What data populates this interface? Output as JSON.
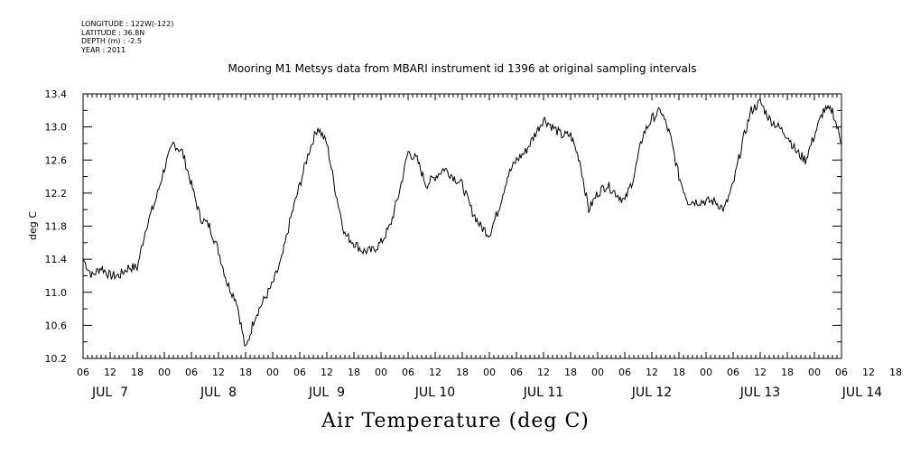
{
  "meta": {
    "longitude": "LONGITUDE : 122W(-122)",
    "latitude": "LATITUDE : 36.8N",
    "depth": "DEPTH (m) : -2.5",
    "year": "YEAR : 2011"
  },
  "chart_data": {
    "type": "line",
    "title": "Mooring M1 Metsys data from MBARI instrument id 1396 at original sampling intervals",
    "ylabel": "deg C",
    "xlabel": "Air Temperature (deg C)",
    "ylim": [
      10.2,
      13.4
    ],
    "yticks": [
      "10.2",
      "10.6",
      "11.0",
      "11.4",
      "11.8",
      "12.2",
      "12.6",
      "13.0",
      "13.4"
    ],
    "x_hour_ticks": [
      "06",
      "12",
      "18",
      "00",
      "06",
      "12",
      "18",
      "00",
      "06",
      "12",
      "18",
      "00",
      "06",
      "12",
      "18",
      "00",
      "06",
      "12",
      "18",
      "00",
      "06",
      "12",
      "18",
      "00",
      "06",
      "12",
      "18",
      "00",
      "06",
      "12",
      "18",
      "00",
      "06"
    ],
    "x_day_labels": [
      "JUL  7",
      "JUL  8",
      "JUL  9",
      "JUL 10",
      "JUL 11",
      "JUL 12",
      "JUL 13",
      "JUL 14"
    ],
    "series": [
      {
        "x_hours_since_jul7_06": [
          0,
          2,
          4,
          6,
          8,
          10,
          12,
          14,
          16,
          18,
          20,
          22,
          24,
          26,
          28,
          30,
          32,
          34,
          36,
          38,
          40,
          42,
          44,
          46,
          48,
          50,
          52,
          54,
          56,
          58,
          60,
          62,
          64,
          66,
          68,
          70,
          72,
          74,
          76,
          78,
          80,
          82,
          84,
          86,
          88,
          90,
          92,
          94,
          96,
          98,
          100,
          102,
          104,
          106,
          108,
          110,
          112,
          114,
          116,
          118,
          120,
          122,
          124,
          126,
          128,
          130,
          132,
          134,
          136,
          138,
          140,
          142,
          144,
          146,
          148,
          150,
          152,
          154,
          156,
          158,
          160,
          162,
          164,
          166,
          168
        ],
        "values": [
          11.4,
          11.2,
          11.3,
          11.2,
          11.2,
          11.3,
          11.3,
          11.8,
          12.1,
          12.5,
          12.8,
          12.7,
          12.3,
          11.9,
          11.8,
          11.5,
          11.1,
          10.9,
          10.3,
          10.7,
          10.9,
          11.1,
          11.4,
          11.9,
          12.3,
          12.7,
          13.0,
          12.8,
          12.2,
          11.7,
          11.6,
          11.5,
          11.5,
          11.6,
          11.8,
          12.2,
          12.7,
          12.6,
          12.3,
          12.4,
          12.5,
          12.4,
          12.3,
          12.0,
          11.8,
          11.7,
          12.0,
          12.4,
          12.6,
          12.7,
          12.9,
          13.1,
          13.0,
          12.9,
          12.9,
          12.6,
          12.0,
          12.2,
          12.3,
          12.2,
          12.1,
          12.4,
          12.9,
          13.1,
          13.2,
          12.9,
          12.4,
          12.1,
          12.1,
          12.1,
          12.1,
          12.0,
          12.3,
          12.8,
          13.2,
          13.3,
          13.1,
          13.0,
          12.9,
          12.7,
          12.6,
          12.9,
          13.2,
          13.2,
          12.8
        ]
      }
    ]
  }
}
